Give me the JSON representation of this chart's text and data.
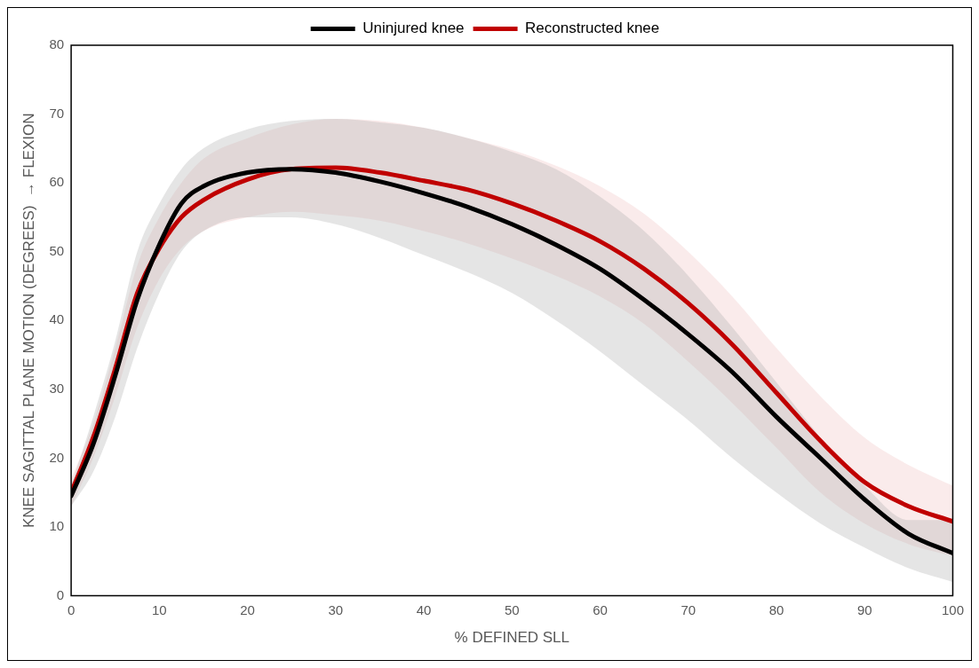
{
  "chart_data": {
    "type": "line",
    "xlabel": "% DEFINED SLL",
    "ylabel": "KNEE SAGITTAL PLANE MOTION (DEGREES)  → FLEXION",
    "x": [
      0,
      2.5,
      5,
      7.5,
      10,
      12.5,
      15,
      20,
      25,
      30,
      35,
      40,
      45,
      50,
      55,
      60,
      65,
      70,
      75,
      80,
      85,
      90,
      95,
      100
    ],
    "series": [
      {
        "name": "Uninjured knee",
        "color": "#000000",
        "values": [
          14.5,
          22,
          32,
          43,
          51,
          57,
          59.5,
          61.5,
          62,
          61.5,
          60.2,
          58.5,
          56.5,
          54,
          51,
          47.5,
          43,
          38,
          32.5,
          26,
          20,
          14,
          9,
          6.2
        ],
        "lower": [
          13,
          18,
          26,
          36,
          44,
          50,
          53,
          55,
          55,
          54,
          52,
          49.5,
          47,
          44,
          40,
          35.5,
          30.5,
          25.5,
          20,
          15,
          10.5,
          7,
          4,
          2
        ],
        "upper": [
          16,
          26,
          37,
          50,
          57,
          62,
          65,
          67.8,
          69,
          69.3,
          68.8,
          68,
          66.5,
          64.5,
          62,
          58,
          53,
          46.5,
          39,
          31,
          23,
          16,
          11,
          11
        ]
      },
      {
        "name": "Reconstructed knee",
        "color": "#c00000",
        "values": [
          15,
          23,
          33,
          44,
          50.5,
          55,
          57.5,
          60.5,
          62,
          62.2,
          61.5,
          60.3,
          59,
          57,
          54.5,
          51.5,
          47.5,
          42.5,
          36.5,
          29.5,
          22.5,
          16.5,
          13,
          10.8
        ],
        "lower": [
          13,
          20,
          29,
          39,
          46,
          50.5,
          53,
          55,
          55.8,
          55.3,
          54.5,
          53,
          51.2,
          49,
          46.5,
          43.5,
          39.5,
          34,
          28,
          21.5,
          15,
          10.5,
          7.5,
          5.8
        ],
        "upper": [
          17,
          25,
          36,
          48,
          55,
          60,
          63.5,
          66.5,
          68.5,
          69.3,
          69,
          68,
          66.5,
          64.8,
          62.5,
          59.5,
          55.5,
          50,
          43.5,
          36,
          29,
          23,
          19,
          16
        ]
      }
    ],
    "xlim": [
      0,
      100
    ],
    "xticks": [
      0,
      10,
      20,
      30,
      40,
      50,
      60,
      70,
      80,
      90,
      100
    ],
    "ylim": [
      0,
      80
    ],
    "yticks": [
      0,
      10,
      20,
      30,
      40,
      50,
      60,
      70,
      80
    ],
    "grid": false,
    "legend": "top",
    "marker": "none",
    "line_style": "solid"
  }
}
